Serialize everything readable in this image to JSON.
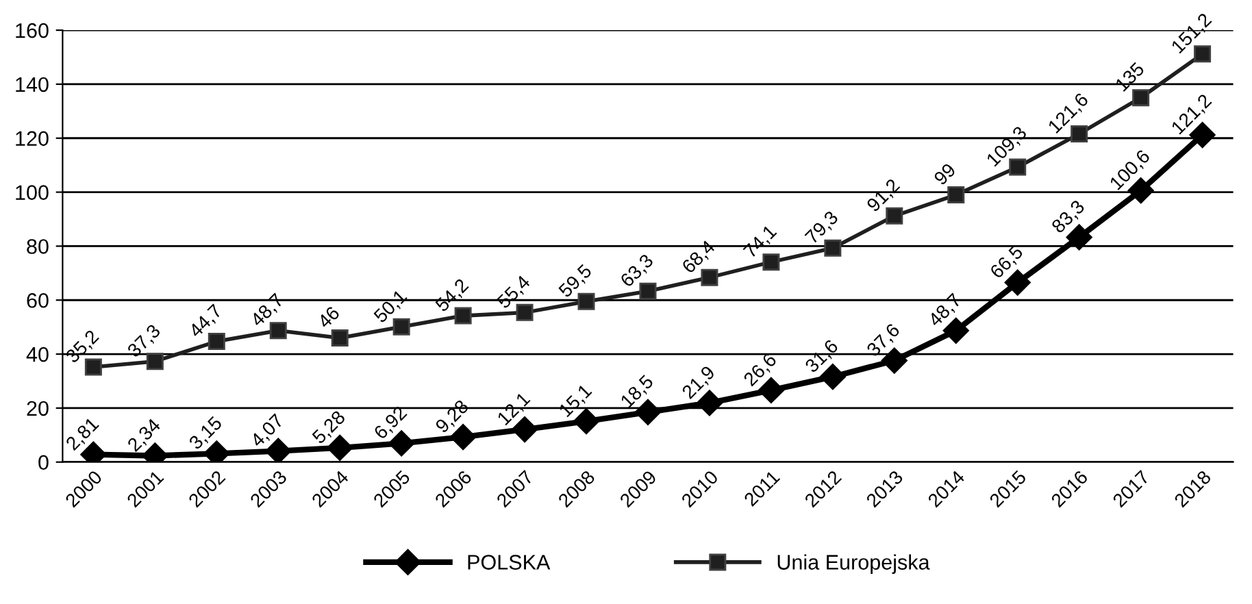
{
  "chart_data": {
    "type": "line",
    "categories": [
      "2000",
      "2001",
      "2002",
      "2003",
      "2004",
      "2005",
      "2006",
      "2007",
      "2008",
      "2009",
      "2010",
      "2011",
      "2012",
      "2013",
      "2014",
      "2015",
      "2016",
      "2017",
      "2018"
    ],
    "series": [
      {
        "name": "POLSKA",
        "color": "#000000",
        "marker": "diamond",
        "values": [
          2.81,
          2.34,
          3.15,
          4.07,
          5.28,
          6.92,
          9.28,
          12.1,
          15.1,
          18.5,
          21.9,
          26.6,
          31.6,
          37.6,
          48.7,
          66.5,
          83.3,
          100.6,
          121.2
        ],
        "value_labels": [
          "2,81",
          "2,34",
          "3,15",
          "4,07",
          "5,28",
          "6,92",
          "9,28",
          "12,1",
          "15,1",
          "18,5",
          "21,9",
          "26,6",
          "31,6",
          "37,6",
          "48,7",
          "66,5",
          "83,3",
          "100,6",
          "121,2"
        ]
      },
      {
        "name": "Unia Europejska",
        "color": "#1f1f1f",
        "marker": "square",
        "values": [
          35.2,
          37.3,
          44.7,
          48.7,
          46,
          50.1,
          54.2,
          55.4,
          59.5,
          63.3,
          68.4,
          74.1,
          79.3,
          91.2,
          99,
          109.3,
          121.6,
          135,
          151.2
        ],
        "value_labels": [
          "35,2",
          "37,3",
          "44,7",
          "48,7",
          "46",
          "50,1",
          "54,2",
          "55,4",
          "59,5",
          "63,3",
          "68,4",
          "74,1",
          "79,3",
          "91,2",
          "99",
          "109,3",
          "121,6",
          "135",
          "151,2"
        ]
      }
    ],
    "ylim": [
      0,
      160
    ],
    "yticks": [
      0,
      20,
      40,
      60,
      80,
      100,
      120,
      140,
      160
    ],
    "grid": "y",
    "legend": "bottom",
    "line_style": "solid"
  }
}
